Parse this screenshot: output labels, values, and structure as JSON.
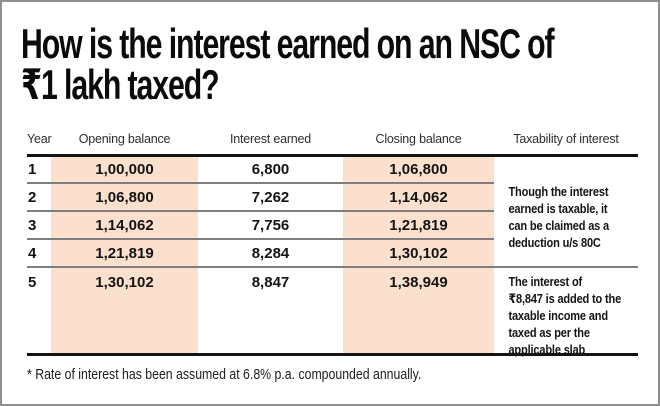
{
  "card": {
    "title_line1": "How is the interest earned on an NSC of",
    "title_line2": "₹1 lakh taxed?",
    "footnote": "* Rate of interest has been assumed at 6.8% p.a. compounded annually."
  },
  "table": {
    "headers": [
      "Year",
      "Opening balance",
      "Interest earned",
      "Closing balance",
      "Taxability of interest"
    ],
    "rows": [
      {
        "year": "1",
        "opening": "1,00,000",
        "interest": "6,800",
        "closing": "1,06,800"
      },
      {
        "year": "2",
        "opening": "1,06,800",
        "interest": "7,262",
        "closing": "1,14,062"
      },
      {
        "year": "3",
        "opening": "1,14,062",
        "interest": "7,756",
        "closing": "1,21,819"
      },
      {
        "year": "4",
        "opening": "1,21,819",
        "interest": "8,284",
        "closing": "1,30,102"
      },
      {
        "year": "5",
        "opening": "1,30,102",
        "interest": "8,847",
        "closing": "1,38,949"
      }
    ],
    "note1": {
      "lines": [
        "Though the interest",
        "earned is taxable, it",
        "can be claimed as a",
        "deduction u/s 80C"
      ]
    },
    "note2": {
      "lines": [
        "The interest of",
        "₹8,847 is added to the",
        "taxable income and",
        "taxed as per the",
        "applicable slab"
      ]
    }
  },
  "colors": {
    "highlight": "#fbe0cd",
    "rule_dark": "#141414",
    "rule_gray": "#7e7e7e",
    "card_border": "#8f8f8f"
  },
  "chart_data": {
    "type": "table",
    "title": "How is the interest earned on an NSC of ₹1 lakh taxed?",
    "columns": [
      "Year",
      "Opening balance",
      "Interest earned",
      "Closing balance",
      "Taxability of interest"
    ],
    "rows": [
      [
        1,
        100000,
        6800,
        106800
      ],
      [
        2,
        106800,
        7262,
        114062
      ],
      [
        3,
        114062,
        7756,
        121819
      ],
      [
        4,
        121819,
        8284,
        130102
      ],
      [
        5,
        130102,
        8847,
        138949
      ]
    ],
    "taxability_notes": [
      {
        "applies_to_years": "1-4",
        "text": "Though the interest earned is taxable, it can be claimed as a deduction u/s 80C"
      },
      {
        "applies_to_years": "5",
        "text": "The interest of ₹8,847 is added to the taxable income and taxed as per the applicable slab"
      }
    ],
    "highlighted_columns": [
      "Opening balance",
      "Closing balance"
    ],
    "footnote": "* Rate of interest has been assumed at 6.8% p.a. compounded annually."
  }
}
